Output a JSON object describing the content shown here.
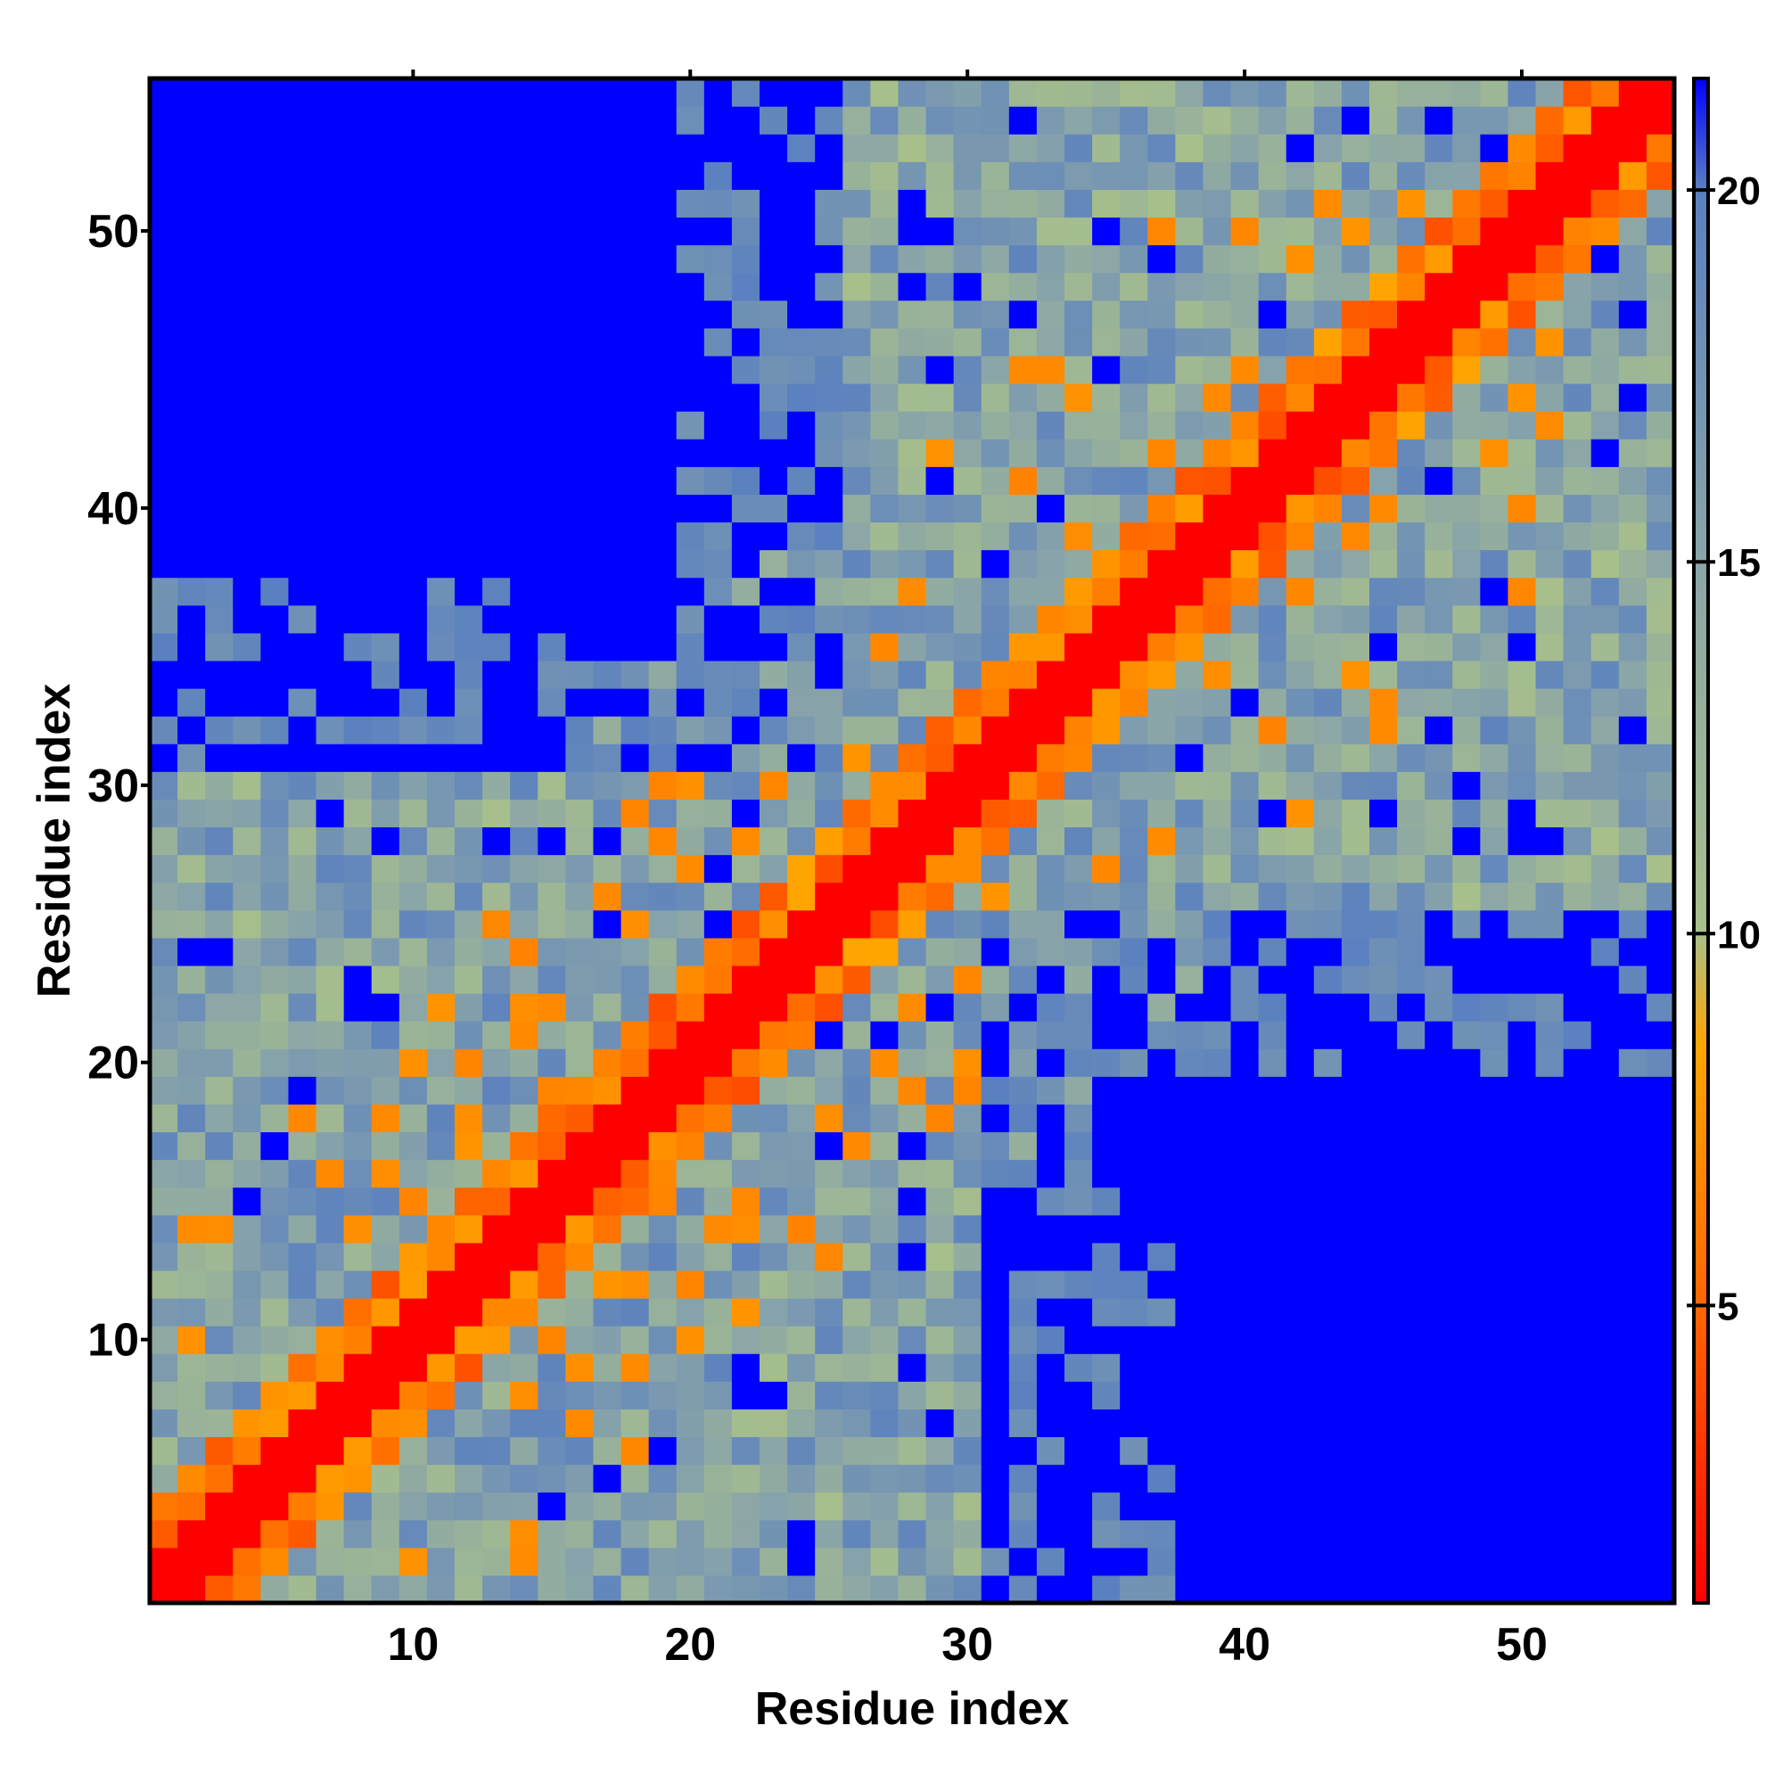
{
  "chart_data": {
    "type": "heatmap",
    "title": "",
    "xlabel": "Residue index",
    "ylabel": "Residue index",
    "n": 55,
    "xlim": [
      0.5,
      55.5
    ],
    "ylim": [
      0.5,
      55.5
    ],
    "xticks": [
      10,
      20,
      30,
      40,
      50
    ],
    "yticks": [
      10,
      20,
      30,
      40,
      50
    ],
    "colorbar": {
      "min": 1,
      "max": 21.5,
      "ticks": [
        5,
        10,
        15,
        20
      ],
      "stops": [
        {
          "value": 1,
          "color": "#ff0000"
        },
        {
          "value": 5,
          "color": "#ff6600"
        },
        {
          "value": 8.5,
          "color": "#ffa500"
        },
        {
          "value": 10,
          "color": "#a8c08a"
        },
        {
          "value": 15,
          "color": "#8aa5a8"
        },
        {
          "value": 20,
          "color": "#5a80c0"
        },
        {
          "value": 21.5,
          "color": "#0000ff"
        }
      ]
    },
    "values_note": "",
    "grid": false,
    "legend": "colorbar-right"
  }
}
